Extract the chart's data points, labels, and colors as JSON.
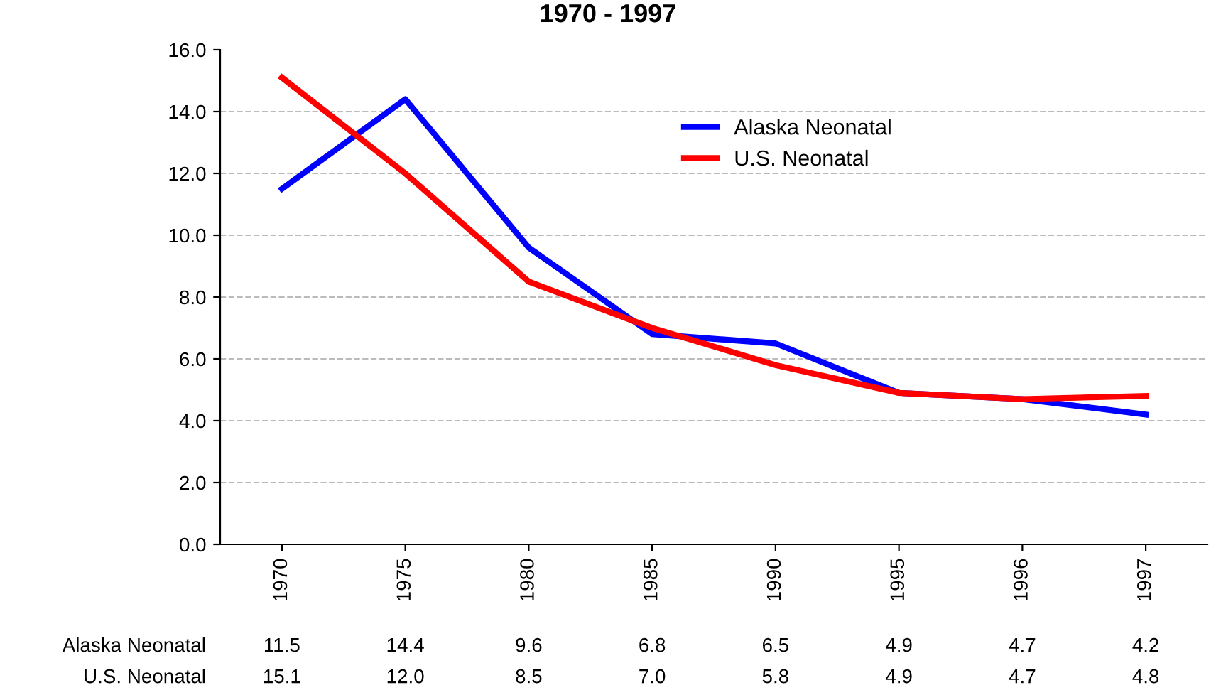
{
  "chart_data": {
    "type": "line",
    "title": "1970 - 1997",
    "categories": [
      "1970",
      "1975",
      "1980",
      "1985",
      "1990",
      "1995",
      "1996",
      "1997"
    ],
    "series": [
      {
        "name": "Alaska Neonatal",
        "color": "#0000ff",
        "values": [
          11.5,
          14.4,
          9.6,
          6.8,
          6.5,
          4.9,
          4.7,
          4.2
        ],
        "value_labels": [
          "11.5",
          "14.4",
          "9.6",
          "6.8",
          "6.5",
          "4.9",
          "4.7",
          "4.2"
        ]
      },
      {
        "name": "U.S. Neonatal",
        "color": "#ff0000",
        "values": [
          15.1,
          12.0,
          8.5,
          7.0,
          5.8,
          4.9,
          4.7,
          4.8
        ],
        "value_labels": [
          "15.1",
          "12.0",
          "8.5",
          "7.0",
          "5.8",
          "4.9",
          "4.7",
          "4.8"
        ]
      }
    ],
    "ylim": [
      0,
      16
    ],
    "yticks": [
      {
        "value": 0,
        "label": "0.0"
      },
      {
        "value": 2,
        "label": "2.0"
      },
      {
        "value": 4,
        "label": "4.0"
      },
      {
        "value": 6,
        "label": "6.0"
      },
      {
        "value": 8,
        "label": "8.0"
      },
      {
        "value": 10,
        "label": "10.0"
      },
      {
        "value": 12,
        "label": "12.0"
      },
      {
        "value": 14,
        "label": "14.0"
      },
      {
        "value": 16,
        "label": "16.0"
      }
    ],
    "grid": "y",
    "legend": "top right",
    "line_style": "solid"
  }
}
